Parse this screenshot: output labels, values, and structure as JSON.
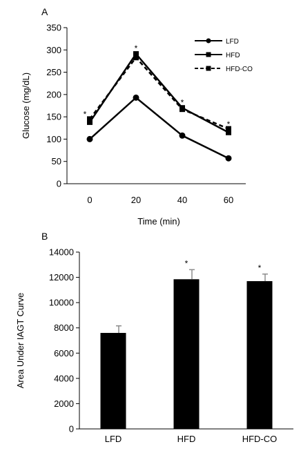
{
  "panels": {
    "a_label": "A",
    "b_label": "B"
  },
  "chart_data": [
    {
      "type": "line",
      "panel": "A",
      "xlabel": "Time (min)",
      "ylabel": "Glucose (mg/dL)",
      "x": [
        0,
        20,
        40,
        60
      ],
      "ylim": [
        0,
        350
      ],
      "yticks": [
        0,
        50,
        100,
        150,
        200,
        250,
        300,
        350
      ],
      "grid": false,
      "legend_position": "top-right",
      "series": [
        {
          "name": "LFD",
          "values": [
            100,
            193,
            108,
            57
          ],
          "marker": "circle",
          "dash": "solid"
        },
        {
          "name": "HFD",
          "values": [
            138,
            291,
            170,
            115
          ],
          "marker": "square",
          "dash": "solid"
        },
        {
          "name": "HFD-CO",
          "values": [
            145,
            283,
            167,
            123
          ],
          "marker": "square",
          "dash": "dashed"
        }
      ],
      "annotations": [
        {
          "x": 0,
          "y": 146,
          "text": "*"
        },
        {
          "x": 20,
          "y": 294,
          "text": "*"
        },
        {
          "x": 40,
          "y": 173,
          "text": "*"
        },
        {
          "x": 60,
          "y": 124,
          "text": "*"
        }
      ]
    },
    {
      "type": "bar",
      "panel": "B",
      "ylabel": "Area Under IAGT Curve",
      "categories": [
        "LFD",
        "HFD",
        "HFD-CO"
      ],
      "values": [
        7600,
        11850,
        11700
      ],
      "errors": [
        560,
        760,
        560
      ],
      "ylim": [
        0,
        14000
      ],
      "yticks": [
        0,
        2000,
        4000,
        6000,
        8000,
        10000,
        12000,
        14000
      ],
      "grid": false,
      "bar_color": "#000000",
      "annotations": [
        {
          "category": "HFD",
          "text": "*"
        },
        {
          "category": "HFD-CO",
          "text": "*"
        }
      ]
    }
  ]
}
